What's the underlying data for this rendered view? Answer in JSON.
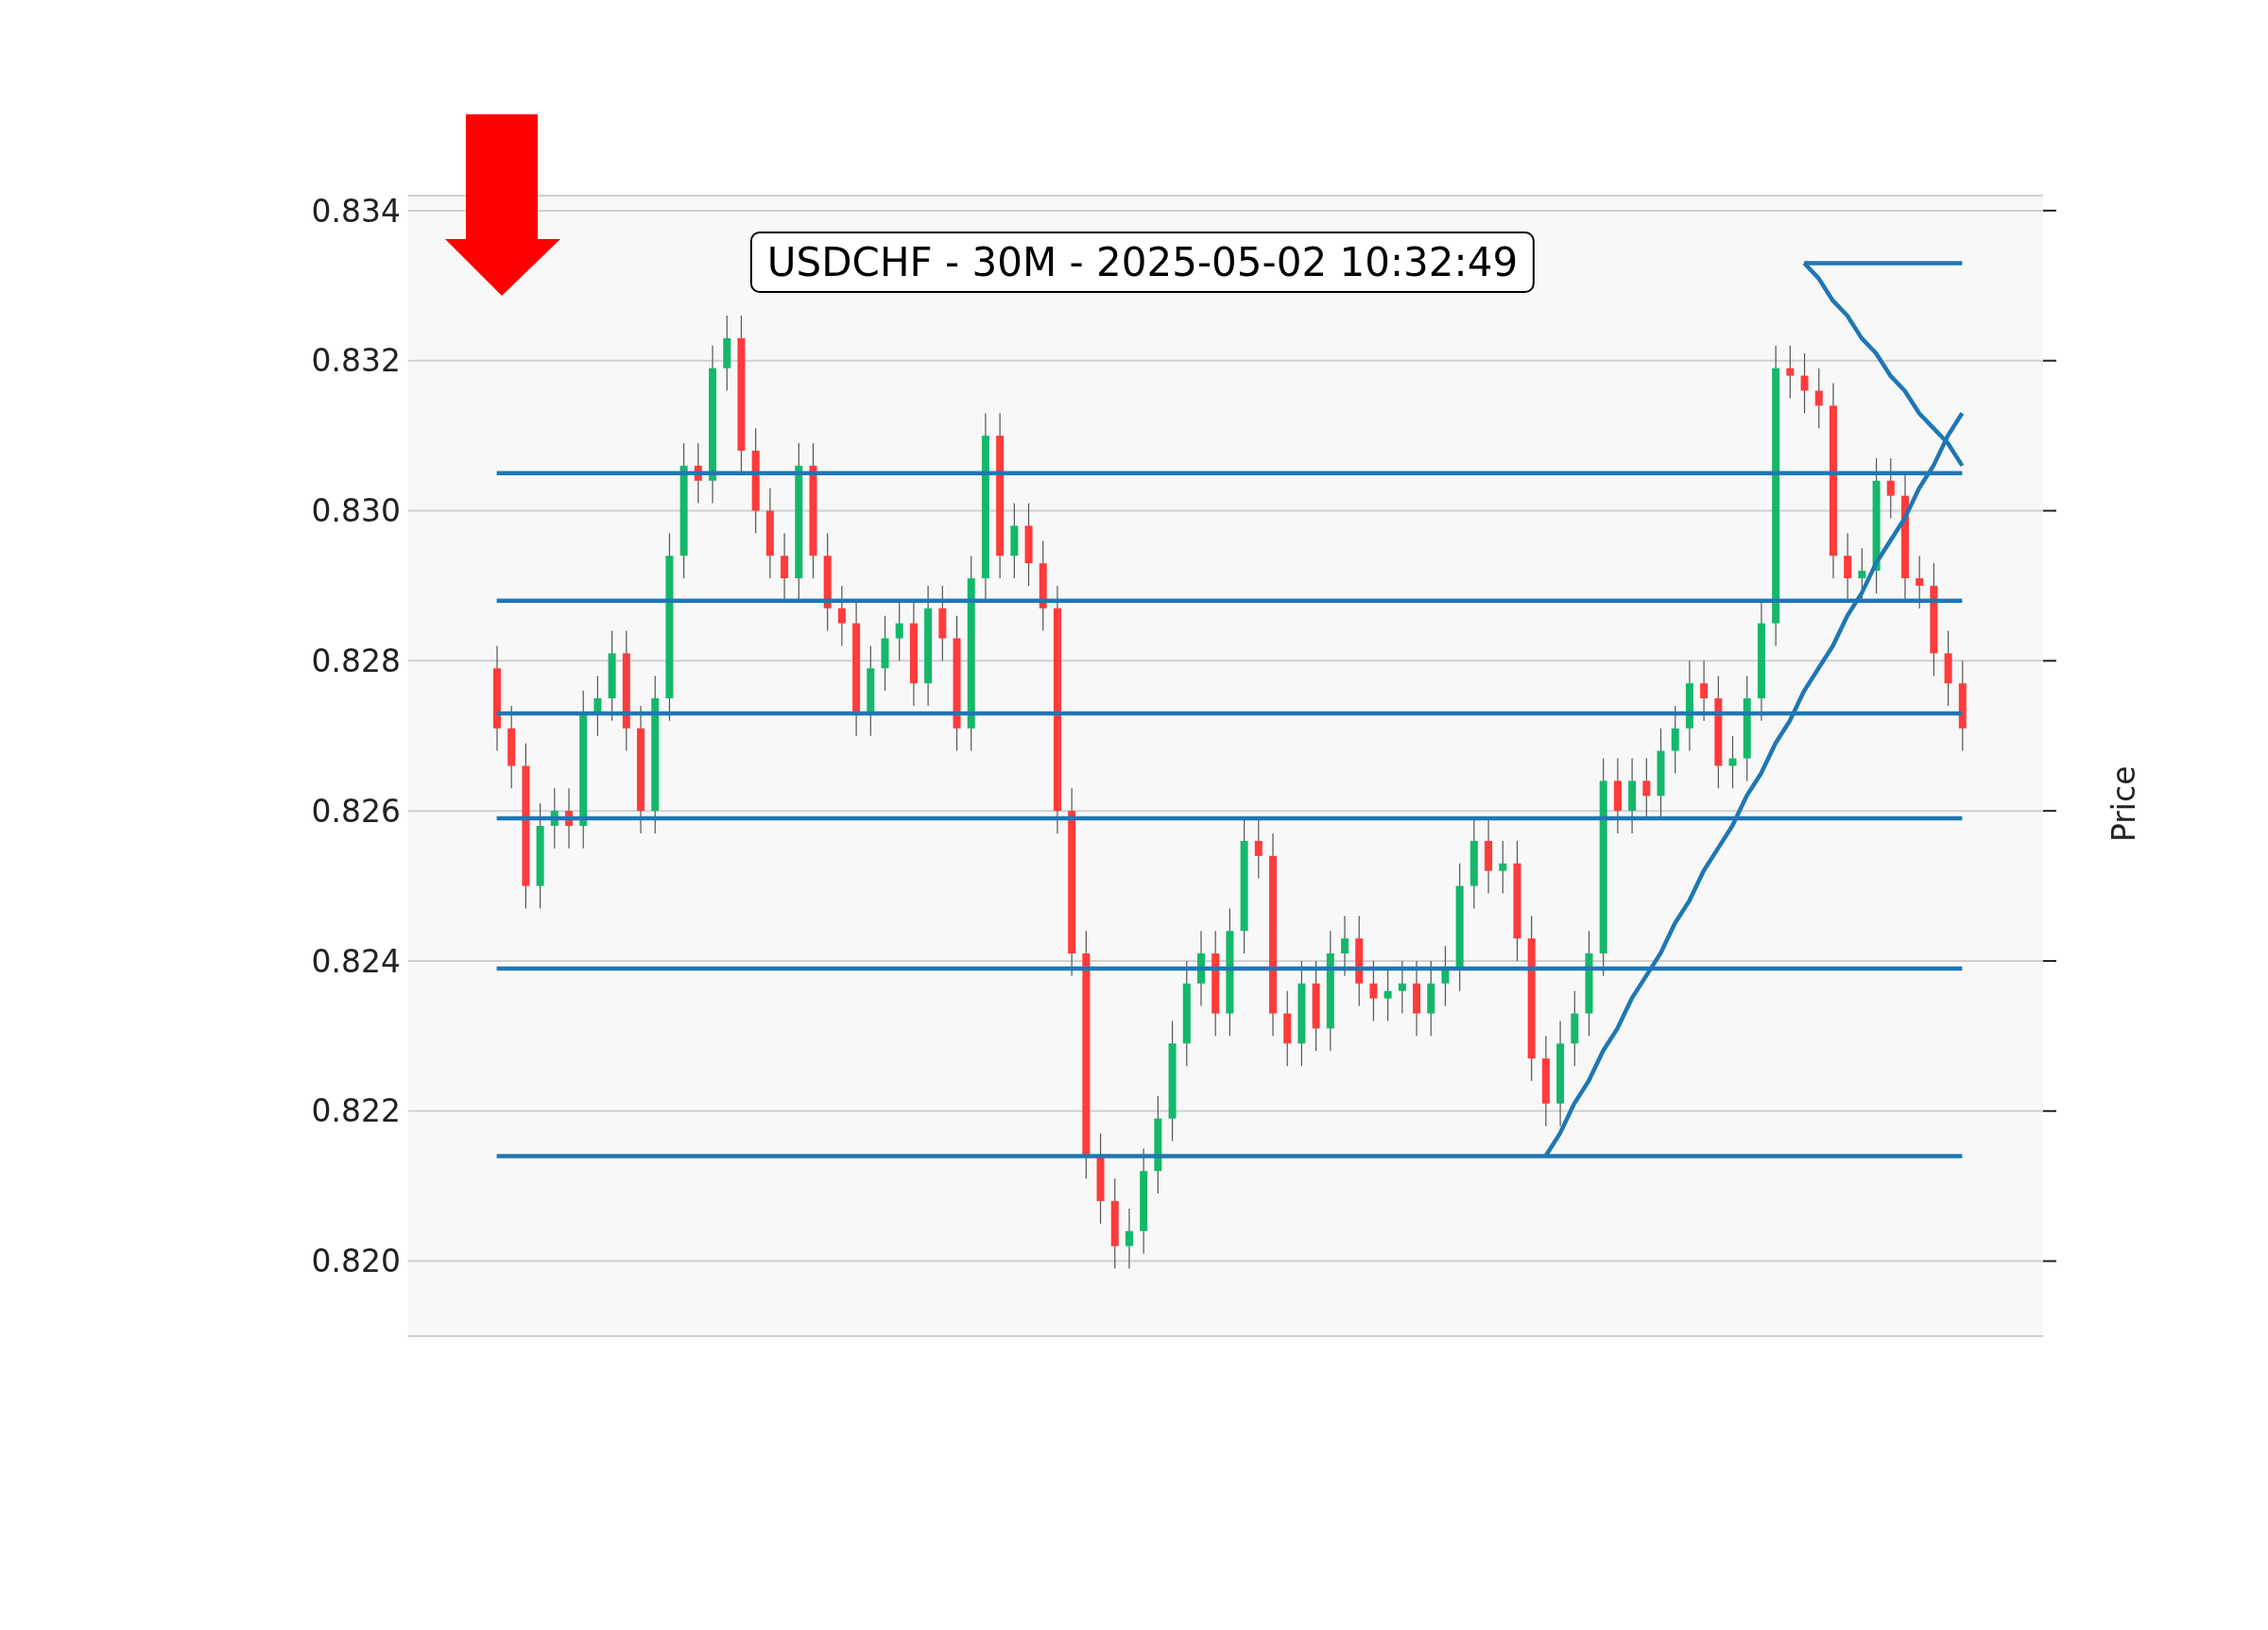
{
  "chart_data": {
    "type": "candlestick",
    "title": "USDCHF - 30M - 2025-05-02 10:32:49",
    "ylabel": "Price",
    "tick_labels": "y",
    "grid": "y",
    "ylim": [
      0.819,
      0.8342
    ],
    "yticks": [
      {
        "value": 0.82,
        "label": "0.820"
      },
      0.822,
      0.824,
      0.826,
      0.828,
      {
        "value": 0.83,
        "label": "0.830"
      },
      0.832,
      0.834
    ],
    "categories": [
      null,
      null,
      null,
      null,
      null,
      null,
      null,
      null,
      null,
      null,
      null,
      null,
      null,
      null,
      null,
      null,
      null,
      null,
      null,
      null,
      null,
      null,
      null,
      null,
      null,
      null,
      null,
      null,
      null,
      null,
      null,
      null,
      null,
      null,
      null,
      null,
      null,
      null,
      null,
      null,
      null,
      null,
      null,
      null,
      null,
      null,
      null,
      null,
      null,
      null,
      null,
      null,
      null,
      null,
      null,
      null,
      null,
      null,
      null,
      null,
      null,
      null,
      null,
      null,
      null,
      null,
      null,
      null,
      null,
      null,
      null,
      null,
      null,
      null,
      null,
      null,
      null,
      null,
      null,
      null,
      null,
      null,
      null,
      null,
      null,
      null,
      null,
      null,
      null,
      null,
      null,
      null,
      null,
      null,
      null,
      null,
      null,
      null,
      null,
      null,
      null,
      null,
      null
    ],
    "ohlc": [
      [
        0.8279,
        0.8282,
        0.8268,
        0.8271
      ],
      [
        0.8271,
        0.8274,
        0.8263,
        0.8266
      ],
      [
        0.8266,
        0.8269,
        0.8247,
        0.825
      ],
      [
        0.825,
        0.8261,
        0.8247,
        0.8258
      ],
      [
        0.8258,
        0.8263,
        0.8255,
        0.826
      ],
      [
        0.826,
        0.8263,
        0.8255,
        0.8258
      ],
      [
        0.8258,
        0.8276,
        0.8255,
        0.8273
      ],
      [
        0.8273,
        0.8278,
        0.827,
        0.8275
      ],
      [
        0.8275,
        0.8284,
        0.8272,
        0.8281
      ],
      [
        0.8281,
        0.8284,
        0.8268,
        0.8271
      ],
      [
        0.8271,
        0.8274,
        0.8257,
        0.826
      ],
      [
        0.826,
        0.8278,
        0.8257,
        0.8275
      ],
      [
        0.8275,
        0.8297,
        0.8272,
        0.8294
      ],
      [
        0.8294,
        0.8309,
        0.8291,
        0.8306
      ],
      [
        0.8306,
        0.8309,
        0.8301,
        0.8304
      ],
      [
        0.8304,
        0.8322,
        0.8301,
        0.8319
      ],
      [
        0.8319,
        0.8326,
        0.8316,
        0.8323
      ],
      [
        0.8323,
        0.8326,
        0.8305,
        0.8308
      ],
      [
        0.8308,
        0.8311,
        0.8297,
        0.83
      ],
      [
        0.83,
        0.8303,
        0.8291,
        0.8294
      ],
      [
        0.8294,
        0.8297,
        0.8288,
        0.8291
      ],
      [
        0.8291,
        0.8309,
        0.8288,
        0.8306
      ],
      [
        0.8306,
        0.8309,
        0.8291,
        0.8294
      ],
      [
        0.8294,
        0.8297,
        0.8284,
        0.8287
      ],
      [
        0.8287,
        0.829,
        0.8282,
        0.8285
      ],
      [
        0.8285,
        0.8288,
        0.827,
        0.8273
      ],
      [
        0.8273,
        0.8282,
        0.827,
        0.8279
      ],
      [
        0.8279,
        0.8286,
        0.8276,
        0.8283
      ],
      [
        0.8283,
        0.8288,
        0.828,
        0.8285
      ],
      [
        0.8285,
        0.8288,
        0.8274,
        0.8277
      ],
      [
        0.8277,
        0.829,
        0.8274,
        0.8287
      ],
      [
        0.8287,
        0.829,
        0.828,
        0.8283
      ],
      [
        0.8283,
        0.8286,
        0.8268,
        0.8271
      ],
      [
        0.8271,
        0.8294,
        0.8268,
        0.8291
      ],
      [
        0.8291,
        0.8313,
        0.8288,
        0.831
      ],
      [
        0.831,
        0.8313,
        0.8291,
        0.8294
      ],
      [
        0.8294,
        0.8301,
        0.8291,
        0.8298
      ],
      [
        0.8298,
        0.8301,
        0.829,
        0.8293
      ],
      [
        0.8293,
        0.8296,
        0.8284,
        0.8287
      ],
      [
        0.8287,
        0.829,
        0.8257,
        0.826
      ],
      [
        0.826,
        0.8263,
        0.8238,
        0.8241
      ],
      [
        0.8241,
        0.8244,
        0.8211,
        0.8214
      ],
      [
        0.8214,
        0.8217,
        0.8205,
        0.8208
      ],
      [
        0.8208,
        0.8211,
        0.8199,
        0.8202
      ],
      [
        0.8202,
        0.8207,
        0.8199,
        0.8204
      ],
      [
        0.8204,
        0.8215,
        0.8201,
        0.8212
      ],
      [
        0.8212,
        0.8222,
        0.8209,
        0.8219
      ],
      [
        0.8219,
        0.8232,
        0.8216,
        0.8229
      ],
      [
        0.8229,
        0.824,
        0.8226,
        0.8237
      ],
      [
        0.8237,
        0.8244,
        0.8234,
        0.8241
      ],
      [
        0.8241,
        0.8244,
        0.823,
        0.8233
      ],
      [
        0.8233,
        0.8247,
        0.823,
        0.8244
      ],
      [
        0.8244,
        0.8259,
        0.8241,
        0.8256
      ],
      [
        0.8256,
        0.8259,
        0.8251,
        0.8254
      ],
      [
        0.8254,
        0.8257,
        0.823,
        0.8233
      ],
      [
        0.8233,
        0.8236,
        0.8226,
        0.8229
      ],
      [
        0.8229,
        0.824,
        0.8226,
        0.8237
      ],
      [
        0.8237,
        0.824,
        0.8228,
        0.8231
      ],
      [
        0.8231,
        0.8244,
        0.8228,
        0.8241
      ],
      [
        0.8241,
        0.8246,
        0.8238,
        0.8243
      ],
      [
        0.8243,
        0.8246,
        0.8234,
        0.8237
      ],
      [
        0.8237,
        0.824,
        0.8232,
        0.8235
      ],
      [
        0.8235,
        0.8239,
        0.8232,
        0.8236
      ],
      [
        0.8236,
        0.824,
        0.8233,
        0.8237
      ],
      [
        0.8237,
        0.824,
        0.823,
        0.8233
      ],
      [
        0.8233,
        0.824,
        0.823,
        0.8237
      ],
      [
        0.8237,
        0.8242,
        0.8234,
        0.8239
      ],
      [
        0.8239,
        0.8253,
        0.8236,
        0.825
      ],
      [
        0.825,
        0.8259,
        0.8247,
        0.8256
      ],
      [
        0.8256,
        0.8259,
        0.8249,
        0.8252
      ],
      [
        0.8252,
        0.8256,
        0.8249,
        0.8253
      ],
      [
        0.8253,
        0.8256,
        0.824,
        0.8243
      ],
      [
        0.8243,
        0.8246,
        0.8224,
        0.8227
      ],
      [
        0.8227,
        0.823,
        0.8218,
        0.8221
      ],
      [
        0.8221,
        0.8232,
        0.8218,
        0.8229
      ],
      [
        0.8229,
        0.8236,
        0.8226,
        0.8233
      ],
      [
        0.8233,
        0.8244,
        0.823,
        0.8241
      ],
      [
        0.8241,
        0.8267,
        0.8238,
        0.8264
      ],
      [
        0.8264,
        0.8267,
        0.8257,
        0.826
      ],
      [
        0.826,
        0.8267,
        0.8257,
        0.8264
      ],
      [
        0.8264,
        0.8267,
        0.8259,
        0.8262
      ],
      [
        0.8262,
        0.8271,
        0.8259,
        0.8268
      ],
      [
        0.8268,
        0.8274,
        0.8265,
        0.8271
      ],
      [
        0.8271,
        0.828,
        0.8268,
        0.8277
      ],
      [
        0.8277,
        0.828,
        0.8272,
        0.8275
      ],
      [
        0.8275,
        0.8278,
        0.8263,
        0.8266
      ],
      [
        0.8266,
        0.827,
        0.8263,
        0.8267
      ],
      [
        0.8267,
        0.8278,
        0.8264,
        0.8275
      ],
      [
        0.8275,
        0.8288,
        0.8272,
        0.8285
      ],
      [
        0.8285,
        0.8322,
        0.8282,
        0.8319
      ],
      [
        0.8319,
        0.8322,
        0.8315,
        0.8318
      ],
      [
        0.8318,
        0.8321,
        0.8313,
        0.8316
      ],
      [
        0.8316,
        0.8319,
        0.8311,
        0.8314
      ],
      [
        0.8314,
        0.8317,
        0.8291,
        0.8294
      ],
      [
        0.8294,
        0.8297,
        0.8288,
        0.8291
      ],
      [
        0.8291,
        0.8295,
        0.8288,
        0.8292
      ],
      [
        0.8292,
        0.8307,
        0.8289,
        0.8304
      ],
      [
        0.8304,
        0.8307,
        0.8299,
        0.8302
      ],
      [
        0.8302,
        0.8305,
        0.8288,
        0.8291
      ],
      [
        0.8291,
        0.8294,
        0.8287,
        0.829
      ],
      [
        0.829,
        0.8293,
        0.8278,
        0.8281
      ],
      [
        0.8281,
        0.8284,
        0.8274,
        0.8277
      ],
      [
        0.8277,
        0.828,
        0.8268,
        0.8271
      ]
    ],
    "series": [
      {
        "type": "line",
        "color": "#1f77b4",
        "values": [
          null,
          null,
          null,
          null,
          null,
          null,
          null,
          null,
          null,
          null,
          null,
          null,
          null,
          null,
          null,
          null,
          null,
          null,
          null,
          null,
          null,
          null,
          null,
          null,
          null,
          null,
          null,
          null,
          null,
          null,
          null,
          null,
          null,
          null,
          null,
          null,
          null,
          null,
          null,
          null,
          null,
          null,
          null,
          null,
          null,
          null,
          null,
          null,
          null,
          null,
          null,
          null,
          null,
          null,
          null,
          null,
          null,
          null,
          null,
          null,
          null,
          null,
          null,
          null,
          null,
          null,
          null,
          null,
          null,
          null,
          null,
          null,
          null,
          null,
          null,
          null,
          null,
          null,
          null,
          null,
          null,
          null,
          null,
          null,
          null,
          null,
          null,
          null,
          null,
          null,
          null,
          0.8333,
          0.8333,
          0.8333,
          0.8333,
          0.8333,
          0.8333,
          0.8333,
          0.8333,
          0.8333,
          0.8333,
          0.8333,
          0.8333
        ]
      },
      {
        "type": "line",
        "color": "#1f77b4",
        "values": [
          null,
          null,
          null,
          null,
          null,
          null,
          null,
          null,
          null,
          null,
          null,
          null,
          null,
          null,
          null,
          null,
          null,
          null,
          null,
          null,
          null,
          null,
          null,
          null,
          null,
          null,
          null,
          null,
          null,
          null,
          null,
          null,
          null,
          null,
          null,
          null,
          null,
          null,
          null,
          null,
          null,
          null,
          null,
          null,
          null,
          null,
          null,
          null,
          null,
          null,
          null,
          null,
          null,
          null,
          null,
          null,
          null,
          null,
          null,
          null,
          null,
          null,
          null,
          null,
          null,
          null,
          null,
          null,
          null,
          null,
          null,
          null,
          null,
          null,
          null,
          null,
          null,
          null,
          null,
          null,
          null,
          null,
          null,
          null,
          null,
          null,
          null,
          null,
          null,
          null,
          null,
          0.8333,
          0.8331,
          0.8328,
          0.8326,
          0.8323,
          0.8321,
          0.8318,
          0.8316,
          0.8313,
          0.8311,
          0.8309,
          0.8306
        ]
      },
      {
        "type": "line",
        "color": "#1f77b4",
        "values": [
          null,
          null,
          null,
          null,
          null,
          null,
          null,
          null,
          null,
          null,
          null,
          null,
          null,
          null,
          null,
          null,
          null,
          null,
          null,
          null,
          null,
          null,
          null,
          null,
          null,
          null,
          null,
          null,
          null,
          null,
          null,
          null,
          null,
          null,
          null,
          null,
          null,
          null,
          null,
          null,
          null,
          null,
          null,
          null,
          null,
          null,
          null,
          null,
          null,
          null,
          null,
          null,
          null,
          null,
          null,
          null,
          null,
          null,
          null,
          null,
          null,
          null,
          null,
          null,
          null,
          null,
          null,
          null,
          null,
          null,
          null,
          null,
          null,
          0.8214,
          0.8217,
          0.8221,
          0.8224,
          0.8228,
          0.8231,
          0.8235,
          0.8238,
          0.8241,
          0.8245,
          0.8248,
          0.8252,
          0.8255,
          0.8258,
          0.8262,
          0.8265,
          0.8269,
          0.8272,
          0.8276,
          0.8279,
          0.8282,
          0.8286,
          0.8289,
          0.8293,
          0.8296,
          0.8299,
          0.8303,
          0.8306,
          0.831,
          0.8313
        ]
      }
    ],
    "ref_lines": [
      {
        "axis": "y",
        "value": 0.8305,
        "color": "#1f77b4"
      },
      {
        "axis": "y",
        "value": 0.8288,
        "color": "#1f77b4"
      },
      {
        "axis": "y",
        "value": 0.8273,
        "color": "#1f77b4"
      },
      {
        "axis": "y",
        "value": 0.8259,
        "color": "#1f77b4"
      },
      {
        "axis": "y",
        "value": 0.8239,
        "color": "#1f77b4"
      },
      {
        "axis": "y",
        "value": 0.8214,
        "color": "#1f77b4"
      }
    ]
  }
}
